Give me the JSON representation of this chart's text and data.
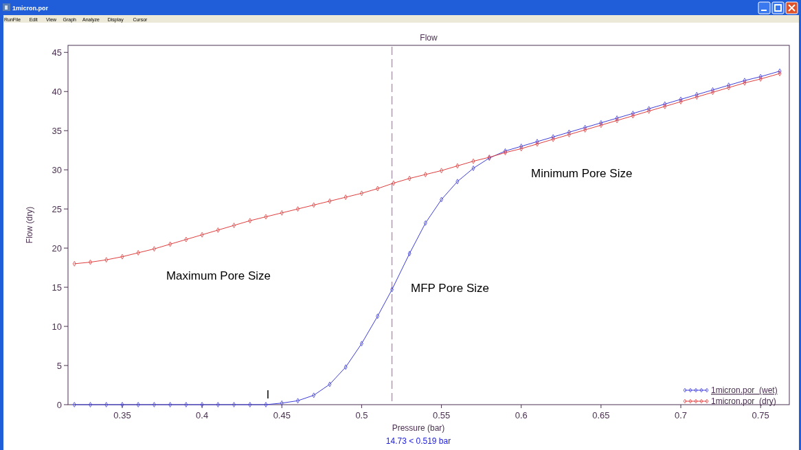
{
  "chart_data": {
    "type": "line",
    "title": "Flow",
    "xlabel": "Pressure (bar)",
    "ylabel": "Flow (dry)",
    "xlim": [
      0.316,
      0.768
    ],
    "xticks": [
      0.35,
      0.4,
      0.45,
      0.5,
      0.55,
      0.6,
      0.65,
      0.7,
      0.75
    ],
    "ylim": [
      0,
      45.9
    ],
    "yticks": [
      0,
      5,
      10,
      15,
      20,
      25,
      30,
      35,
      40,
      45
    ],
    "grid": false,
    "legend": "bottom right",
    "marker": "diamond",
    "line_style": "solid",
    "series": [
      {
        "name": "1micron.por  (wet)",
        "color": "#3c3cdc",
        "x": [
          0.32,
          0.33,
          0.34,
          0.35,
          0.36,
          0.37,
          0.38,
          0.39,
          0.4,
          0.41,
          0.42,
          0.43,
          0.44,
          0.45,
          0.46,
          0.47,
          0.48,
          0.49,
          0.5,
          0.51,
          0.519,
          0.53,
          0.54,
          0.55,
          0.56,
          0.57,
          0.58,
          0.59,
          0.6,
          0.61,
          0.62,
          0.63,
          0.64,
          0.65,
          0.66,
          0.67,
          0.68,
          0.69,
          0.7,
          0.71,
          0.72,
          0.73,
          0.74,
          0.75,
          0.762
        ],
        "values": [
          0,
          0,
          0,
          0,
          0,
          0,
          0,
          0,
          0,
          0,
          0,
          0,
          0,
          0.2,
          0.5,
          1.2,
          2.6,
          4.8,
          7.8,
          11.3,
          14.7,
          19.3,
          23.2,
          26.2,
          28.5,
          30.2,
          31.5,
          32.4,
          33.0,
          33.6,
          34.2,
          34.8,
          35.4,
          36.0,
          36.6,
          37.2,
          37.8,
          38.4,
          39.0,
          39.6,
          40.2,
          40.8,
          41.4,
          41.9,
          42.6
        ]
      },
      {
        "name": "1micron.por  (dry)",
        "color": "#e03c3c",
        "x": [
          0.32,
          0.33,
          0.34,
          0.35,
          0.36,
          0.37,
          0.38,
          0.39,
          0.4,
          0.41,
          0.42,
          0.43,
          0.44,
          0.45,
          0.46,
          0.47,
          0.48,
          0.49,
          0.5,
          0.51,
          0.52,
          0.53,
          0.54,
          0.55,
          0.56,
          0.57,
          0.58,
          0.59,
          0.6,
          0.61,
          0.62,
          0.63,
          0.64,
          0.65,
          0.66,
          0.67,
          0.68,
          0.69,
          0.7,
          0.71,
          0.72,
          0.73,
          0.74,
          0.75,
          0.762
        ],
        "values": [
          18.0,
          18.2,
          18.5,
          18.9,
          19.4,
          19.9,
          20.5,
          21.1,
          21.7,
          22.3,
          22.9,
          23.5,
          24.0,
          24.5,
          25.0,
          25.5,
          26.0,
          26.5,
          27.0,
          27.6,
          28.3,
          28.9,
          29.4,
          29.9,
          30.5,
          31.1,
          31.6,
          32.2,
          32.7,
          33.3,
          33.9,
          34.5,
          35.1,
          35.7,
          36.3,
          36.9,
          37.5,
          38.1,
          38.7,
          39.3,
          39.9,
          40.5,
          41.1,
          41.6,
          42.3
        ]
      }
    ],
    "ref_lines": [
      {
        "axis": "x",
        "value": 0.519,
        "color": "#9a8a9a",
        "line_style": "dashed"
      }
    ],
    "annotations": [
      "1micron.por",
      "RunFile",
      "Edit",
      "View",
      "Graph",
      "Analyze",
      "Display",
      "Cursor",
      "Maximum Pore Size",
      "MFP Pore Size",
      "Minimum Pore Size",
      "14.73 < 0.519 bar"
    ]
  }
}
